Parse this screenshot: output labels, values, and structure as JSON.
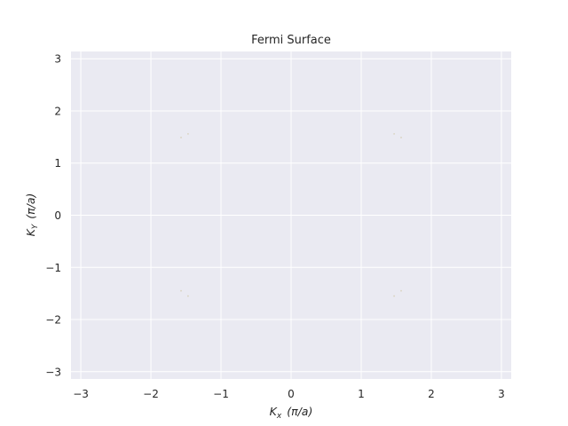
{
  "chart_data": {
    "type": "scatter",
    "title": "Fermi Surface",
    "xlabel": {
      "symbol": "K",
      "subscript": "x",
      "unit": "(π/a)"
    },
    "ylabel": {
      "symbol": "K",
      "subscript": "Y",
      "unit": "(π/a)"
    },
    "xlim": [
      -3.14,
      3.14
    ],
    "ylim": [
      -3.14,
      3.14
    ],
    "xticks": [
      -3,
      -2,
      -1,
      0,
      1,
      2,
      3
    ],
    "yticks": [
      -3,
      -2,
      -1,
      0,
      1,
      2,
      3
    ],
    "xtick_labels": [
      "−3",
      "−2",
      "−1",
      "0",
      "1",
      "2",
      "3"
    ],
    "ytick_labels": [
      "−3",
      "−2",
      "−1",
      "0",
      "1",
      "2",
      "3"
    ],
    "grid": true,
    "background_color": "#eaeaf2",
    "grid_color": "#ffffff",
    "point_color": "#d9d3c0",
    "points": [
      {
        "x": -1.57,
        "y": 1.49
      },
      {
        "x": -1.47,
        "y": 1.56
      },
      {
        "x": 1.47,
        "y": 1.56
      },
      {
        "x": 1.57,
        "y": 1.49
      },
      {
        "x": -1.57,
        "y": -1.45
      },
      {
        "x": -1.47,
        "y": -1.55
      },
      {
        "x": 1.47,
        "y": -1.55
      },
      {
        "x": 1.57,
        "y": -1.45
      }
    ]
  }
}
